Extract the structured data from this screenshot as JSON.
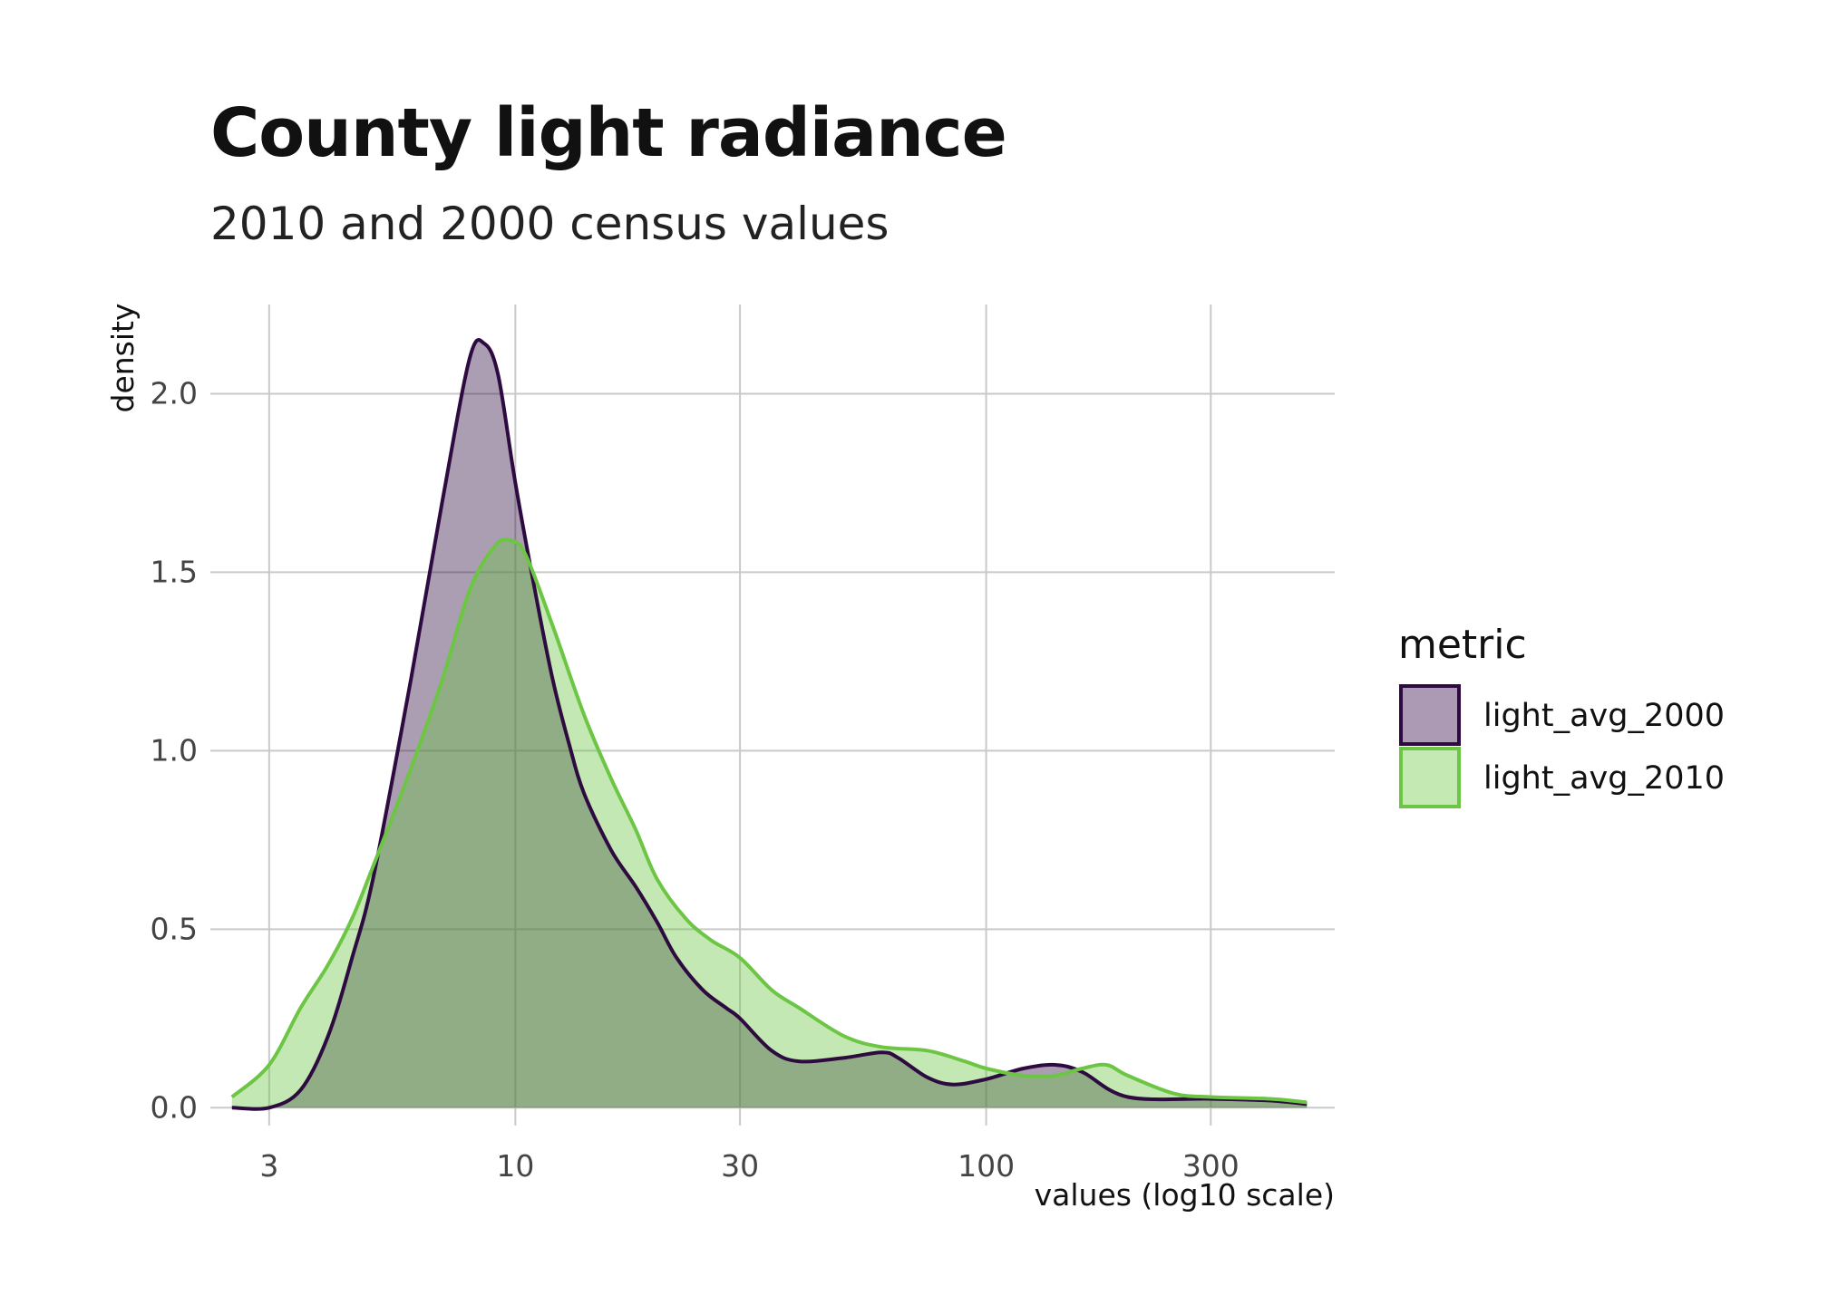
{
  "chart_data": {
    "type": "area",
    "title": "County light radiance",
    "subtitle": "2010 and 2000 census values",
    "xlabel": "values (log10 scale)",
    "ylabel": "density",
    "x_scale": "log10",
    "xlim": [
      2.25,
      550
    ],
    "ylim": [
      -0.05,
      2.25
    ],
    "x_ticks": [
      3,
      10,
      30,
      100,
      300
    ],
    "x_tick_labels": [
      "3",
      "10",
      "30",
      "100",
      "300"
    ],
    "y_ticks": [
      0.0,
      0.5,
      1.0,
      1.5,
      2.0
    ],
    "y_tick_labels": [
      "0.0",
      "0.5",
      "1.0",
      "1.5",
      "2.0"
    ],
    "grid": true,
    "legend": {
      "title": "metric",
      "position": "right"
    },
    "series": [
      {
        "name": "light_avg_2000",
        "color": "#2d0a3f",
        "fill": "#ac99b4",
        "points": [
          [
            2.5,
            0.0
          ],
          [
            3.0,
            0.0
          ],
          [
            3.5,
            0.05
          ],
          [
            4.0,
            0.2
          ],
          [
            4.5,
            0.42
          ],
          [
            5.0,
            0.65
          ],
          [
            6.0,
            1.2
          ],
          [
            7.0,
            1.7
          ],
          [
            8.0,
            2.1
          ],
          [
            8.6,
            2.14
          ],
          [
            9.2,
            2.05
          ],
          [
            10.0,
            1.75
          ],
          [
            11.0,
            1.45
          ],
          [
            12.0,
            1.2
          ],
          [
            13.0,
            1.02
          ],
          [
            14.0,
            0.88
          ],
          [
            16.0,
            0.72
          ],
          [
            18.0,
            0.62
          ],
          [
            20.0,
            0.52
          ],
          [
            22.0,
            0.42
          ],
          [
            25.0,
            0.33
          ],
          [
            28.0,
            0.28
          ],
          [
            30.0,
            0.25
          ],
          [
            35.0,
            0.16
          ],
          [
            40.0,
            0.13
          ],
          [
            50.0,
            0.14
          ],
          [
            60.0,
            0.155
          ],
          [
            65.0,
            0.14
          ],
          [
            75.0,
            0.085
          ],
          [
            85.0,
            0.065
          ],
          [
            100.0,
            0.08
          ],
          [
            120.0,
            0.11
          ],
          [
            140.0,
            0.12
          ],
          [
            160.0,
            0.1
          ],
          [
            200.0,
            0.03
          ],
          [
            300.0,
            0.025
          ],
          [
            400.0,
            0.02
          ],
          [
            480.0,
            0.01
          ]
        ]
      },
      {
        "name": "light_avg_2010",
        "color": "#6cc644",
        "fill": "#c5e9b3",
        "points": [
          [
            2.5,
            0.03
          ],
          [
            3.0,
            0.12
          ],
          [
            3.5,
            0.28
          ],
          [
            4.0,
            0.4
          ],
          [
            4.5,
            0.53
          ],
          [
            5.0,
            0.68
          ],
          [
            6.0,
            0.95
          ],
          [
            7.0,
            1.2
          ],
          [
            8.0,
            1.45
          ],
          [
            9.0,
            1.57
          ],
          [
            9.7,
            1.59
          ],
          [
            10.5,
            1.55
          ],
          [
            12.0,
            1.35
          ],
          [
            14.0,
            1.1
          ],
          [
            16.0,
            0.92
          ],
          [
            18.0,
            0.78
          ],
          [
            20.0,
            0.64
          ],
          [
            23.0,
            0.53
          ],
          [
            26.0,
            0.47
          ],
          [
            30.0,
            0.42
          ],
          [
            35.0,
            0.33
          ],
          [
            40.0,
            0.28
          ],
          [
            50.0,
            0.2
          ],
          [
            60.0,
            0.17
          ],
          [
            75.0,
            0.16
          ],
          [
            90.0,
            0.13
          ],
          [
            100.0,
            0.11
          ],
          [
            120.0,
            0.09
          ],
          [
            140.0,
            0.09
          ],
          [
            160.0,
            0.11
          ],
          [
            180.0,
            0.12
          ],
          [
            200.0,
            0.09
          ],
          [
            250.0,
            0.04
          ],
          [
            300.0,
            0.03
          ],
          [
            400.0,
            0.025
          ],
          [
            480.0,
            0.015
          ]
        ]
      }
    ]
  }
}
